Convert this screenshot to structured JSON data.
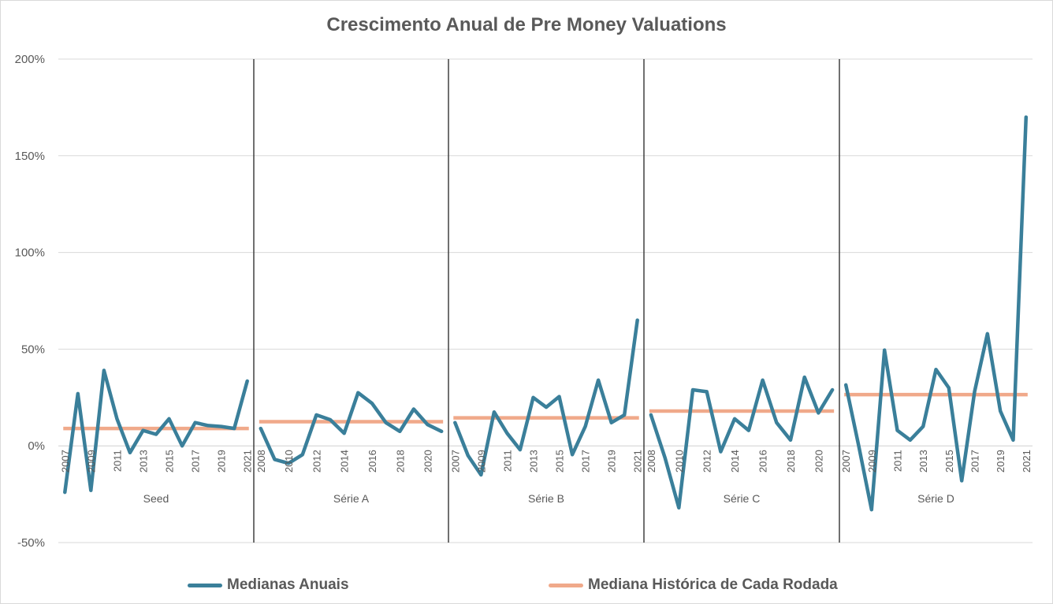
{
  "chart_data": {
    "type": "line",
    "title": "Crescimento Anual de Pre Money Valuations",
    "xlabel": "",
    "ylabel": "",
    "ylim": [
      -0.5,
      2.0
    ],
    "yticks": [
      -0.5,
      0,
      0.5,
      1.0,
      1.5,
      2.0
    ],
    "ytick_labels": [
      "-50%",
      "0%",
      "50%",
      "100%",
      "150%",
      "200%"
    ],
    "grid": true,
    "legend_position": "bottom",
    "groups": [
      {
        "name": "Seed",
        "years": [
          2007,
          2008,
          2009,
          2010,
          2011,
          2012,
          2013,
          2014,
          2015,
          2016,
          2017,
          2018,
          2019,
          2020,
          2021
        ],
        "tick_labels": [
          "2007",
          "2009",
          "2011",
          "2013",
          "2015",
          "2017",
          "2019",
          "2021"
        ],
        "medianas_anuais": [
          -0.24,
          0.27,
          -0.23,
          0.39,
          0.14,
          -0.035,
          0.08,
          0.06,
          0.14,
          0.0,
          0.12,
          0.105,
          0.1,
          0.09,
          0.335
        ],
        "mediana_historica": 0.09
      },
      {
        "name": "Série A",
        "years": [
          2008,
          2009,
          2010,
          2011,
          2012,
          2013,
          2014,
          2015,
          2016,
          2017,
          2018,
          2019,
          2020,
          2021
        ],
        "tick_labels": [
          "2008",
          "2010",
          "2012",
          "2014",
          "2016",
          "2018",
          "2020"
        ],
        "medianas_anuais": [
          0.09,
          -0.07,
          -0.09,
          -0.045,
          0.16,
          0.135,
          0.065,
          0.275,
          0.22,
          0.12,
          0.075,
          0.19,
          0.11,
          0.075
        ],
        "mediana_historica": 0.125
      },
      {
        "name": "Série B",
        "years": [
          2007,
          2008,
          2009,
          2010,
          2011,
          2012,
          2013,
          2014,
          2015,
          2016,
          2017,
          2018,
          2019,
          2020,
          2021
        ],
        "tick_labels": [
          "2007",
          "2009",
          "2011",
          "2013",
          "2015",
          "2017",
          "2019",
          "2021"
        ],
        "medianas_anuais": [
          0.12,
          -0.05,
          -0.15,
          0.175,
          0.065,
          -0.02,
          0.25,
          0.2,
          0.255,
          -0.045,
          0.1,
          0.34,
          0.12,
          0.16,
          0.65
        ],
        "mediana_historica": 0.145
      },
      {
        "name": "Série C",
        "years": [
          2008,
          2009,
          2010,
          2011,
          2012,
          2013,
          2014,
          2015,
          2016,
          2017,
          2018,
          2019,
          2020,
          2021
        ],
        "tick_labels": [
          "2008",
          "2010",
          "2012",
          "2014",
          "2016",
          "2018",
          "2020"
        ],
        "medianas_anuais": [
          0.16,
          -0.06,
          -0.32,
          0.29,
          0.28,
          -0.03,
          0.14,
          0.08,
          0.34,
          0.12,
          0.03,
          0.355,
          0.17,
          0.29
        ],
        "mediana_historica": 0.18
      },
      {
        "name": "Série D",
        "years": [
          2007,
          2008,
          2009,
          2010,
          2011,
          2012,
          2013,
          2014,
          2015,
          2016,
          2017,
          2018,
          2019,
          2020,
          2021
        ],
        "tick_labels": [
          "2007",
          "2009",
          "2011",
          "2013",
          "2015",
          "2017",
          "2019",
          "2021"
        ],
        "medianas_anuais": [
          0.315,
          0.0,
          -0.33,
          0.495,
          0.08,
          0.03,
          0.1,
          0.395,
          0.3,
          -0.18,
          0.28,
          0.58,
          0.18,
          0.03,
          1.7
        ],
        "mediana_historica": 0.265
      }
    ],
    "series": [
      {
        "name": "Medianas Anuais",
        "color": "#3a7f9a"
      },
      {
        "name": "Mediana Histórica de Cada Rodada",
        "color": "#f0a98a"
      }
    ]
  },
  "colors": {
    "grid": "#d9d9d9",
    "separator": "#404040",
    "text": "#595959"
  }
}
